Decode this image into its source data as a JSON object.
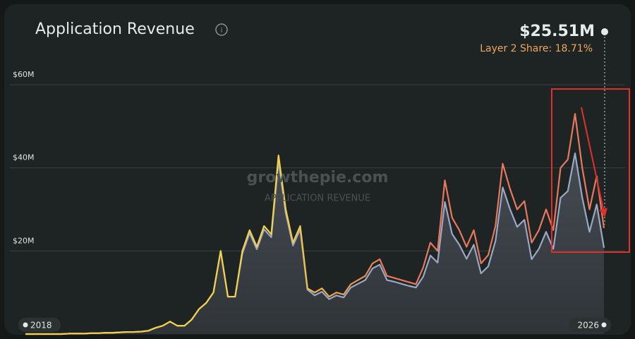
{
  "chart_data": {
    "type": "line",
    "title": "Application Revenue",
    "headline_value": "$25.51M",
    "headline_share": "Layer 2 Share: 18.71%",
    "watermark": "growthepie.com",
    "watermark_subtitle": "APPLICATION REVENUE",
    "x": [
      2018,
      2018.1,
      2018.2,
      2018.3,
      2018.4,
      2018.5,
      2018.6,
      2018.7,
      2018.8,
      2018.9,
      2019,
      2019.1,
      2019.2,
      2019.3,
      2019.4,
      2019.5,
      2019.6,
      2019.7,
      2019.8,
      2019.9,
      2020,
      2020.1,
      2020.2,
      2020.3,
      2020.4,
      2020.5,
      2020.6,
      2020.7,
      2020.8,
      2020.9,
      2021,
      2021.1,
      2021.2,
      2021.3,
      2021.4,
      2021.5,
      2021.6,
      2021.7,
      2021.8,
      2021.9,
      2022,
      2022.1,
      2022.2,
      2022.3,
      2022.4,
      2022.5,
      2022.6,
      2022.7,
      2022.8,
      2022.9,
      2023,
      2023.1,
      2023.2,
      2023.3,
      2023.4,
      2023.5,
      2023.6,
      2023.7,
      2023.8,
      2023.9,
      2024,
      2024.1,
      2024.2,
      2024.3,
      2024.4,
      2024.5,
      2024.6,
      2024.7,
      2024.8,
      2024.9,
      2025,
      2025.1,
      2025.2,
      2025.3,
      2025.4,
      2025.5,
      2025.6,
      2025.7,
      2025.8,
      2025.9,
      2026
    ],
    "series": [
      {
        "color": "#e8785c",
        "color_start": "#f5d04a",
        "values": [
          0,
          0,
          0,
          0,
          0,
          0,
          0.1,
          0.1,
          0.1,
          0.2,
          0.2,
          0.3,
          0.3,
          0.4,
          0.5,
          0.5,
          0.6,
          0.8,
          1.5,
          2,
          3,
          2,
          2,
          3.5,
          6,
          7.5,
          10,
          20,
          9,
          9,
          20,
          25,
          21,
          26,
          24,
          43,
          30,
          22,
          26,
          11,
          10,
          11,
          9,
          10,
          9.5,
          12,
          13,
          14,
          17,
          18,
          14,
          13.5,
          13,
          12.5,
          12,
          16,
          22,
          20,
          37,
          28,
          25,
          21,
          25,
          17,
          19,
          26,
          41,
          35,
          30,
          32,
          22,
          25,
          30,
          25,
          40,
          42,
          53,
          40,
          30,
          38,
          25.51
        ]
      },
      {
        "color": "#9aa8c4",
        "fill": "#3a4046",
        "values": [
          0,
          0,
          0,
          0,
          0,
          0,
          0.1,
          0.1,
          0.1,
          0.2,
          0.2,
          0.3,
          0.3,
          0.4,
          0.5,
          0.5,
          0.6,
          0.8,
          1.5,
          2,
          3,
          2,
          2,
          3.5,
          6,
          7.5,
          10,
          20,
          9,
          9,
          19.4,
          24.3,
          20.4,
          25.2,
          23.3,
          41.7,
          29.1,
          21.3,
          25.2,
          10.7,
          9.3,
          10.2,
          8.4,
          9.3,
          8.8,
          11.2,
          12.1,
          13.0,
          15.8,
          16.7,
          13.0,
          12.6,
          12.1,
          11.6,
          11.2,
          13.8,
          18.9,
          17.2,
          31.8,
          24.1,
          21.5,
          18.1,
          21.5,
          14.6,
          16.3,
          22.4,
          35.3,
          30.1,
          25.8,
          27.5,
          18.0,
          20.5,
          24.6,
          20.5,
          32.8,
          34.4,
          43.5,
          32.8,
          24.6,
          31.2,
          20.74
        ]
      }
    ],
    "xlim": [
      2018,
      2026
    ],
    "xticks": [
      2018,
      2026
    ],
    "ylim": [
      0,
      60
    ],
    "yticks": [
      {
        "value": 20,
        "label": "$20M"
      },
      {
        "value": 40,
        "label": "$40M"
      },
      {
        "value": 60,
        "label": "$60M"
      }
    ],
    "grid": true
  }
}
